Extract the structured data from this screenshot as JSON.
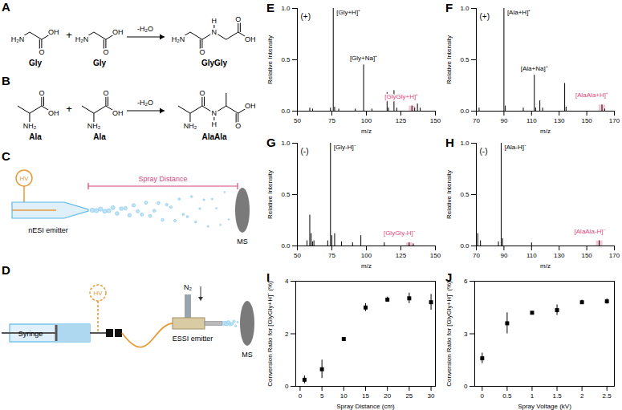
{
  "chart_data": [
    {
      "type": "spectrum",
      "title": "E",
      "subtitle": "(+)",
      "xlabel": "m/z",
      "ylabel": "Relative Intensity",
      "color": "#000000",
      "x": [
        59,
        61,
        74,
        76,
        77,
        80,
        92,
        98,
        104,
        115,
        116,
        120,
        122,
        133,
        135,
        137,
        139
      ],
      "values": [
        0.03,
        0.02,
        0.03,
        1.0,
        0.04,
        0.02,
        0.02,
        0.45,
        0.02,
        0.18,
        0.03,
        0.2,
        0.03,
        0.05,
        0.03,
        0.07,
        0.03
      ],
      "xlim": [
        50,
        150
      ],
      "xticks": [
        50,
        75,
        100,
        125,
        150
      ],
      "ylim": [
        0,
        1
      ],
      "yticks": [
        {
          "value": 0,
          "label": "0.0"
        },
        {
          "value": 0.5,
          "label": "0.5"
        },
        {
          "value": 1,
          "label": "1.0"
        }
      ],
      "annotations": [
        {
          "label": "[Gly+H]⁺",
          "x": 76
        },
        {
          "label": "[Gly+Na]⁺",
          "x": 98
        },
        {
          "label": "[GlyGly+H]⁺",
          "x": 133,
          "color": "#e0457b"
        }
      ]
    },
    {
      "type": "spectrum",
      "title": "F",
      "subtitle": "(+)",
      "xlabel": "m/z",
      "ylabel": "Relative Intensity",
      "color": "#000000",
      "x": [
        72,
        90,
        91,
        104,
        112,
        113,
        116,
        118,
        134,
        135,
        161,
        163
      ],
      "values": [
        0.03,
        1.0,
        0.05,
        0.03,
        0.35,
        0.03,
        0.1,
        0.03,
        0.27,
        0.04,
        0.06,
        0.02
      ],
      "xlim": [
        70,
        170
      ],
      "xticks": [
        70,
        90,
        110,
        130,
        150,
        170
      ],
      "ylim": [
        0,
        1
      ],
      "yticks": [
        {
          "value": 0,
          "label": "0.0"
        },
        {
          "value": 0.5,
          "label": "0.5"
        },
        {
          "value": 1,
          "label": "1.0"
        }
      ],
      "annotations": [
        {
          "label": "[Ala+H]⁺",
          "x": 90
        },
        {
          "label": "[Ala+Na]⁺",
          "x": 112
        },
        {
          "label": "[AlaAla+H]⁺",
          "x": 161,
          "color": "#e0457b"
        }
      ]
    },
    {
      "type": "spectrum",
      "title": "G",
      "subtitle": "(-)",
      "xlabel": "m/z",
      "ylabel": "Relative Intensity",
      "color": "#000000",
      "x": [
        57,
        59,
        60,
        61,
        62,
        72,
        74,
        75,
        77,
        82,
        90,
        96,
        113,
        131,
        134
      ],
      "values": [
        0.05,
        0.3,
        0.12,
        0.04,
        0.05,
        0.05,
        1.0,
        0.1,
        0.12,
        0.04,
        0.03,
        0.1,
        0.03,
        0.03,
        0.02
      ],
      "xlim": [
        50,
        150
      ],
      "xticks": [
        50,
        75,
        100,
        125,
        150
      ],
      "ylim": [
        0,
        1
      ],
      "yticks": [
        {
          "value": 0,
          "label": "0.0"
        },
        {
          "value": 0.5,
          "label": "0.5"
        },
        {
          "value": 1,
          "label": "1.0"
        }
      ],
      "annotations": [
        {
          "label": "[Gly-H]⁻",
          "x": 74
        },
        {
          "label": "[GlyGly-H]⁻",
          "x": 131,
          "color": "#e0457b"
        }
      ]
    },
    {
      "type": "spectrum",
      "title": "H",
      "subtitle": "(-)",
      "xlabel": "m/z",
      "ylabel": "Relative Intensity",
      "color": "#000000",
      "x": [
        71,
        73,
        86,
        88,
        89,
        110,
        159
      ],
      "values": [
        0.12,
        0.05,
        0.04,
        1.0,
        0.07,
        0.03,
        0.05
      ],
      "xlim": [
        70,
        170
      ],
      "xticks": [
        70,
        90,
        110,
        130,
        150,
        170
      ],
      "ylim": [
        0,
        1
      ],
      "yticks": [
        {
          "value": 0,
          "label": "0.0"
        },
        {
          "value": 0.5,
          "label": "0.5"
        },
        {
          "value": 1,
          "label": "1.0"
        }
      ],
      "annotations": [
        {
          "label": "[Ala-H]⁻",
          "x": 88
        },
        {
          "label": "[AlaAla-H]⁻",
          "x": 159,
          "color": "#e0457b"
        }
      ]
    },
    {
      "type": "scatter",
      "title": "I",
      "xlabel": "Spray Distance (cm)",
      "ylabel": "Conversion Ratio for [GlyGly+H]⁺ (%)",
      "color": "#000000",
      "marker": "square",
      "x": [
        1,
        5,
        10,
        15,
        20,
        25,
        30
      ],
      "values": [
        0.25,
        0.65,
        1.8,
        3.0,
        3.3,
        3.35,
        3.2
      ],
      "errors": [
        0.15,
        0.35,
        0.05,
        0.15,
        0.1,
        0.2,
        0.3
      ],
      "xlim": [
        -1,
        31
      ],
      "xticks": [
        0,
        5,
        10,
        15,
        20,
        25,
        30
      ],
      "ylim": [
        0,
        4
      ],
      "yticks": [
        0,
        2,
        4
      ]
    },
    {
      "type": "scatter",
      "title": "J",
      "xlabel": "Spray Voltage (kV)",
      "ylabel": "Conversion Ratio for [GlyGly+H]⁺ (%)",
      "color": "#000000",
      "marker": "square",
      "x": [
        0,
        0.5,
        1,
        1.5,
        2,
        2.5
      ],
      "values": [
        1.6,
        3.6,
        4.2,
        4.35,
        4.8,
        4.85
      ],
      "errors": [
        0.3,
        0.6,
        0.08,
        0.3,
        0.12,
        0.15
      ],
      "xlim": [
        -0.15,
        2.65
      ],
      "xticks": [
        0,
        0.5,
        1,
        1.5,
        2,
        2.5
      ],
      "ylim": [
        0,
        6
      ],
      "yticks": [
        0,
        3,
        6
      ]
    }
  ],
  "diagrams": {
    "A": {
      "label": "A",
      "reactants": [
        {
          "name": "Gly",
          "atoms": [
            "H₂N",
            "O",
            "OH"
          ]
        },
        {
          "name": "Gly",
          "atoms": [
            "H₂N",
            "O",
            "OH"
          ]
        }
      ],
      "operator": "+",
      "arrow_label": "-H₂O",
      "product": {
        "name": "GlyGly",
        "atoms": [
          "H₂N",
          "O",
          "N",
          "H",
          "O",
          "OH"
        ]
      }
    },
    "B": {
      "label": "B",
      "reactants": [
        {
          "name": "Ala",
          "atoms": [
            "NH₂",
            "O",
            "OH"
          ]
        },
        {
          "name": "Ala",
          "atoms": [
            "NH₂",
            "O",
            "OH"
          ]
        }
      ],
      "operator": "+",
      "arrow_label": "-H₂O",
      "product": {
        "name": "AlaAla",
        "atoms": [
          "NH₂",
          "O",
          "N",
          "H",
          "O",
          "OH"
        ]
      }
    },
    "C": {
      "label": "C",
      "hv": "HV",
      "emitter": "nESI emitter",
      "distance": "Spray Distance",
      "ms": "MS"
    },
    "D": {
      "label": "D",
      "syringe": "Syringe",
      "hv": "HV",
      "gas": "N₂",
      "emitter": "ESSI emitter",
      "ms": "MS"
    }
  }
}
